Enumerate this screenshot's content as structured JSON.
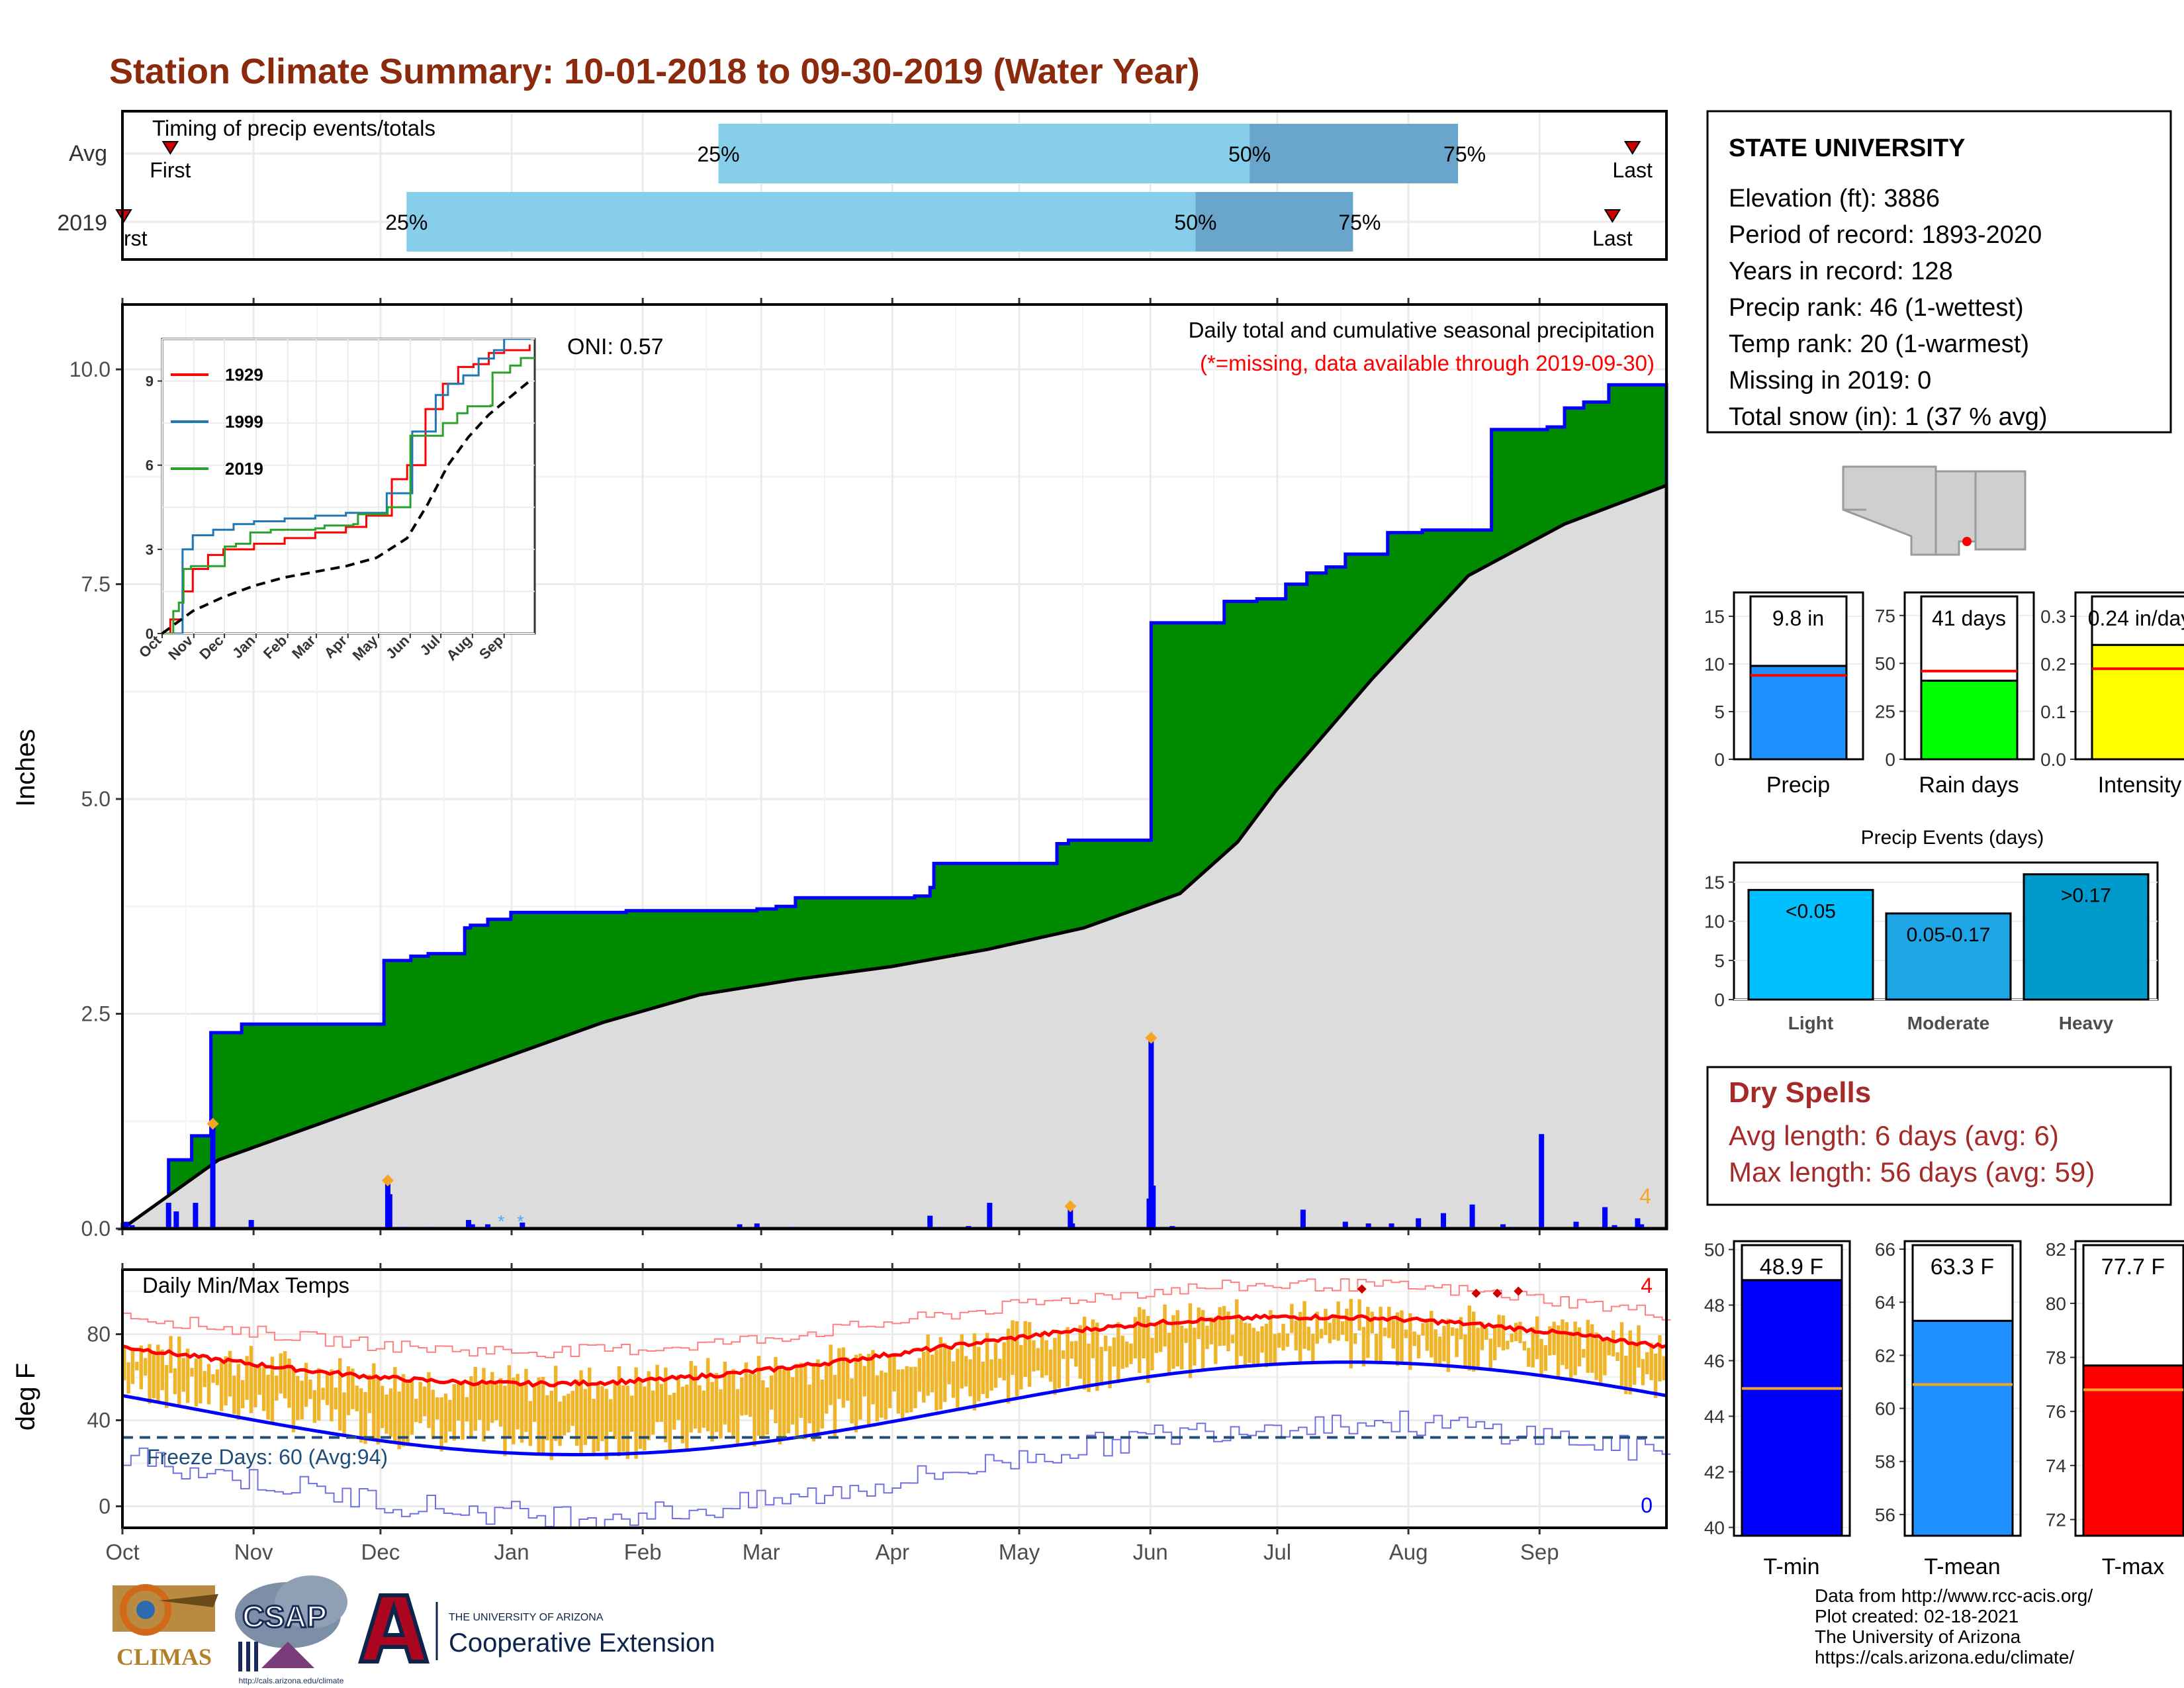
{
  "title": "Station Climate Summary: 10-01-2018 to 09-30-2019 (Water Year)",
  "colors": {
    "title": "#8b2a0c",
    "cum_2019": "#008a00",
    "cum_avg": "#dcdcdc",
    "daily_bar": "#0000ff",
    "q_light": "#87ceeb",
    "q_dark": "#6aa5cc",
    "temp_band": "#f0b429",
    "tmax_avg": "#ff0000",
    "tmin_avg": "#0000ff",
    "dry_spell": "#a52a2a"
  },
  "timing": {
    "label": "Timing of precip events/totals",
    "rows": [
      {
        "name": "Avg",
        "first": "First",
        "last": "Last",
        "p25": "25%",
        "p50": "50%",
        "p75": "75%",
        "first_frac": 0.031,
        "p25_frac": 0.386,
        "p50_frac": 0.73,
        "p75_frac": 0.865,
        "last_frac": 0.978
      },
      {
        "name": "2019",
        "first": "rst",
        "last": "Last",
        "p25": "25%",
        "p50": "50%",
        "p75": "75%",
        "first_frac": 0.0,
        "p25_frac": 0.184,
        "p50_frac": 0.695,
        "p75_frac": 0.797,
        "last_frac": 0.965
      }
    ]
  },
  "precip": {
    "ylabel": "Inches",
    "yticks": [
      "0.0",
      "2.5",
      "5.0",
      "7.5",
      "10.0"
    ],
    "ylim": [
      0,
      10.6
    ],
    "subtitle": "Daily total and cumulative seasonal precipitation",
    "missing_note": "(*=missing, data available through 2019-09-30)",
    "oni": "ONI: 0.57",
    "corner_count": "4",
    "cum_2019": [
      [
        0,
        0.05
      ],
      [
        8,
        0.1
      ],
      [
        15,
        0.15
      ],
      [
        24,
        0.8
      ],
      [
        36,
        1.08
      ],
      [
        46,
        2.28
      ],
      [
        62,
        2.38
      ],
      [
        98,
        2.38
      ],
      [
        135,
        2.38
      ],
      [
        136,
        3.12
      ],
      [
        150,
        3.17
      ],
      [
        159,
        3.2
      ],
      [
        178,
        3.5
      ],
      [
        181,
        3.53
      ],
      [
        190,
        3.6
      ],
      [
        202,
        3.68
      ],
      [
        234,
        3.68
      ],
      [
        262,
        3.7
      ],
      [
        330,
        3.72
      ],
      [
        340,
        3.75
      ],
      [
        350,
        3.85
      ],
      [
        412,
        3.87
      ],
      [
        420,
        3.97
      ],
      [
        422,
        4.25
      ],
      [
        486,
        4.48
      ],
      [
        492,
        4.52
      ],
      [
        532,
        4.52
      ],
      [
        535,
        7.05
      ],
      [
        571,
        7.05
      ],
      [
        573,
        7.3
      ],
      [
        590,
        7.33
      ],
      [
        605,
        7.5
      ],
      [
        616,
        7.63
      ],
      [
        626,
        7.7
      ],
      [
        636,
        7.85
      ],
      [
        658,
        8.1
      ],
      [
        676,
        8.13
      ],
      [
        708,
        8.13
      ],
      [
        712,
        9.3
      ],
      [
        741,
        9.33
      ],
      [
        750,
        9.55
      ],
      [
        760,
        9.62
      ],
      [
        773,
        9.82
      ],
      [
        803,
        9.82
      ]
    ],
    "cum_avg": [
      [
        0,
        0
      ],
      [
        50,
        0.8
      ],
      [
        100,
        1.2
      ],
      [
        150,
        1.6
      ],
      [
        200,
        2.0
      ],
      [
        250,
        2.4
      ],
      [
        300,
        2.72
      ],
      [
        350,
        2.9
      ],
      [
        400,
        3.05
      ],
      [
        450,
        3.25
      ],
      [
        500,
        3.5
      ],
      [
        550,
        3.9
      ],
      [
        580,
        4.5
      ],
      [
        600,
        5.1
      ],
      [
        650,
        6.4
      ],
      [
        700,
        7.6
      ],
      [
        750,
        8.2
      ],
      [
        803,
        8.65
      ]
    ],
    "daily_bars": [
      [
        2,
        0.08
      ],
      [
        5,
        0.04
      ],
      [
        24,
        0.3
      ],
      [
        28,
        0.2
      ],
      [
        38,
        0.3
      ],
      [
        47,
        1.2
      ],
      [
        67,
        0.1
      ],
      [
        138,
        0.55
      ],
      [
        139,
        0.4
      ],
      [
        146,
        0.02
      ],
      [
        160,
        0.02
      ],
      [
        180,
        0.1
      ],
      [
        182,
        0.05
      ],
      [
        190,
        0.05
      ],
      [
        208,
        0.07
      ],
      [
        321,
        0.05
      ],
      [
        330,
        0.06
      ],
      [
        349,
        0.02
      ],
      [
        420,
        0.15
      ],
      [
        425,
        0.02
      ],
      [
        440,
        0.03
      ],
      [
        451,
        0.3
      ],
      [
        493,
        0.25
      ],
      [
        494,
        0.06
      ],
      [
        534,
        0.35
      ],
      [
        535,
        2.2
      ],
      [
        536,
        0.5
      ],
      [
        546,
        0.03
      ],
      [
        614,
        0.22
      ],
      [
        636,
        0.08
      ],
      [
        648,
        0.06
      ],
      [
        660,
        0.06
      ],
      [
        674,
        0.12
      ],
      [
        687,
        0.18
      ],
      [
        702,
        0.28
      ],
      [
        718,
        0.05
      ],
      [
        723,
        0.02
      ],
      [
        738,
        1.1
      ],
      [
        756,
        0.08
      ],
      [
        771,
        0.25
      ],
      [
        776,
        0.04
      ],
      [
        788,
        0.12
      ],
      [
        790,
        0.05
      ]
    ],
    "diamonds": [
      [
        47,
        1.22
      ],
      [
        138,
        0.56
      ],
      [
        493,
        0.26
      ],
      [
        535,
        2.22
      ]
    ],
    "missing_marks": [
      [
        197,
        0.02
      ],
      [
        207,
        0.02
      ]
    ]
  },
  "inset": {
    "legend": [
      {
        "name": "1929",
        "color": "#ff0000"
      },
      {
        "name": "1999",
        "color": "#1f77b4"
      },
      {
        "name": "2019",
        "color": "#2ca02c"
      }
    ],
    "yticks": [
      "0",
      "3",
      "6",
      "9"
    ],
    "xticks": [
      "Oct",
      "Nov",
      "Dec",
      "Jan",
      "Feb",
      "Mar",
      "Apr",
      "May",
      "Jun",
      "Jul",
      "Aug",
      "Sep"
    ],
    "ylim": [
      0,
      10.5
    ],
    "s1929": [
      [
        0,
        0
      ],
      [
        8,
        0.5
      ],
      [
        20,
        1.5
      ],
      [
        30,
        2.3
      ],
      [
        45,
        2.8
      ],
      [
        60,
        3.0
      ],
      [
        90,
        3.2
      ],
      [
        120,
        3.4
      ],
      [
        150,
        3.6
      ],
      [
        180,
        3.8
      ],
      [
        200,
        4.2
      ],
      [
        225,
        5.5
      ],
      [
        240,
        6.0
      ],
      [
        258,
        8.0
      ],
      [
        275,
        8.9
      ],
      [
        290,
        9.5
      ],
      [
        305,
        9.6
      ],
      [
        320,
        10.0
      ],
      [
        335,
        10.1
      ],
      [
        360,
        10.3
      ]
    ],
    "s1999": [
      [
        0,
        0
      ],
      [
        15,
        0
      ],
      [
        20,
        3.0
      ],
      [
        30,
        3.5
      ],
      [
        50,
        3.7
      ],
      [
        70,
        3.9
      ],
      [
        90,
        4.0
      ],
      [
        120,
        4.1
      ],
      [
        150,
        4.2
      ],
      [
        180,
        4.3
      ],
      [
        200,
        4.3
      ],
      [
        220,
        5.0
      ],
      [
        245,
        7.2
      ],
      [
        268,
        8.5
      ],
      [
        280,
        8.9
      ],
      [
        295,
        9.2
      ],
      [
        310,
        9.8
      ],
      [
        325,
        10.1
      ],
      [
        335,
        10.5
      ],
      [
        360,
        11.0
      ]
    ],
    "s2019": [
      [
        0,
        0
      ],
      [
        12,
        0
      ],
      [
        24,
        0.8
      ],
      [
        36,
        1.1
      ],
      [
        46,
        2.3
      ],
      [
        62,
        2.4
      ],
      [
        98,
        2.4
      ],
      [
        135,
        3.1
      ],
      [
        159,
        3.2
      ],
      [
        190,
        3.6
      ],
      [
        234,
        3.7
      ],
      [
        262,
        3.7
      ],
      [
        330,
        3.75
      ],
      [
        350,
        3.85
      ],
      [
        412,
        3.9
      ],
      [
        422,
        4.25
      ],
      [
        486,
        4.5
      ],
      [
        532,
        4.5
      ],
      [
        535,
        7.05
      ],
      [
        571,
        7.05
      ],
      [
        605,
        7.5
      ],
      [
        636,
        7.85
      ],
      [
        658,
        8.1
      ],
      [
        708,
        8.13
      ],
      [
        712,
        9.3
      ],
      [
        750,
        9.55
      ],
      [
        773,
        9.82
      ],
      [
        803,
        9.82
      ]
    ],
    "avg": [
      [
        0,
        0
      ],
      [
        30,
        0.8
      ],
      [
        60,
        1.3
      ],
      [
        90,
        1.7
      ],
      [
        120,
        2.0
      ],
      [
        150,
        2.2
      ],
      [
        180,
        2.4
      ],
      [
        210,
        2.7
      ],
      [
        240,
        3.4
      ],
      [
        260,
        4.6
      ],
      [
        280,
        6.0
      ],
      [
        300,
        7.0
      ],
      [
        320,
        7.8
      ],
      [
        340,
        8.4
      ],
      [
        360,
        9.0
      ]
    ]
  },
  "temps": {
    "label": "Daily Min/Max Temps",
    "ylabel": "deg F",
    "yticks": [
      "0",
      "40",
      "80"
    ],
    "ylim": [
      -10,
      110
    ],
    "freeze": "Freeze Days: 60 (Avg:94)",
    "freeze_line": 32,
    "top_count": "4",
    "bottom_count": "0"
  },
  "months": [
    "Oct",
    "Nov",
    "Dec",
    "Jan",
    "Feb",
    "Mar",
    "Apr",
    "May",
    "Jun",
    "Jul",
    "Aug",
    "Sep"
  ],
  "station": {
    "name": "STATE UNIVERSITY",
    "lines": [
      "Elevation (ft): 3886",
      "Period of record: 1893-2020",
      "Years in record: 128",
      "Precip rank: 46 (1-wettest)",
      "Temp rank: 20 (1-warmest)",
      "Missing in 2019: 0",
      "Total snow (in): 1 (37 % avg)"
    ]
  },
  "summary_bars": [
    {
      "name": "Precip",
      "value_label": "9.8 in",
      "value": 9.8,
      "avg": 8.8,
      "ymax": 17.5,
      "ticks": [
        0,
        5,
        10,
        15
      ],
      "tick_labels": [
        "0",
        "5",
        "10",
        "15"
      ],
      "color": "#1e90ff"
    },
    {
      "name": "Rain days",
      "value_label": "41 days",
      "value": 41,
      "avg": 46,
      "ymax": 87,
      "ticks": [
        0,
        25,
        50,
        75
      ],
      "tick_labels": [
        "0",
        "25",
        "50",
        "75"
      ],
      "color": "#00ff00"
    },
    {
      "name": "Intensity",
      "value_label": "0.24 in/day",
      "value": 0.24,
      "avg": 0.19,
      "ymax": 0.35,
      "ticks": [
        0.0,
        0.1,
        0.2,
        0.3
      ],
      "tick_labels": [
        "0.0",
        "0.1",
        "0.2",
        "0.3"
      ],
      "color": "#ffff00"
    }
  ],
  "events": {
    "title": "Precip Events (days)",
    "ticks": [
      "0",
      "5",
      "10",
      "15"
    ],
    "ymax": 17.5,
    "bars": [
      {
        "name": "Light",
        "label": "<0.05",
        "value": 14,
        "color": "#00bfff"
      },
      {
        "name": "Moderate",
        "label": "0.05-0.17",
        "value": 11,
        "color": "#1ea5e6"
      },
      {
        "name": "Heavy",
        "label": ">0.17",
        "value": 16,
        "color": "#0099cc"
      }
    ]
  },
  "dry_spells": {
    "title": "Dry Spells",
    "avg": "Avg length: 6 days (avg: 6)",
    "max": "Max length: 56 days (avg: 59)"
  },
  "temp_bars": [
    {
      "name": "T-min",
      "value_label": "48.9 F",
      "value": 48.9,
      "avg": 45.0,
      "ymin": 39.7,
      "ymax": 50.3,
      "ticks": [
        40,
        42,
        44,
        46,
        48,
        50
      ],
      "tick_labels": [
        "40",
        "42",
        "44",
        "46",
        "48",
        "50"
      ],
      "color": "#0000ff"
    },
    {
      "name": "T-mean",
      "value_label": "63.3 F",
      "value": 63.3,
      "avg": 60.9,
      "ymin": 55.2,
      "ymax": 66.3,
      "ticks": [
        56,
        58,
        60,
        62,
        64,
        66
      ],
      "tick_labels": [
        "56",
        "58",
        "60",
        "62",
        "64",
        "66"
      ],
      "color": "#1e90ff"
    },
    {
      "name": "T-max",
      "value_label": "77.7 F",
      "value": 77.7,
      "avg": 76.8,
      "ymin": 71.4,
      "ymax": 82.3,
      "ticks": [
        72,
        74,
        76,
        78,
        80,
        82
      ],
      "tick_labels": [
        "72",
        "74",
        "76",
        "78",
        "80",
        "82"
      ],
      "color": "#ff0000"
    }
  ],
  "credits": [
    "Data from http://www.rcc-acis.org/",
    "Plot created: 02-18-2021",
    "The University of Arizona",
    "https://cals.arizona.edu/climate/"
  ],
  "logos": {
    "climas": "CLIMAS",
    "csap": "CSAP",
    "csap_url": "http://cals.arizona.edu/climate",
    "ua_small": "THE UNIVERSITY OF ARIZONA",
    "ua_big": "Cooperative Extension"
  }
}
